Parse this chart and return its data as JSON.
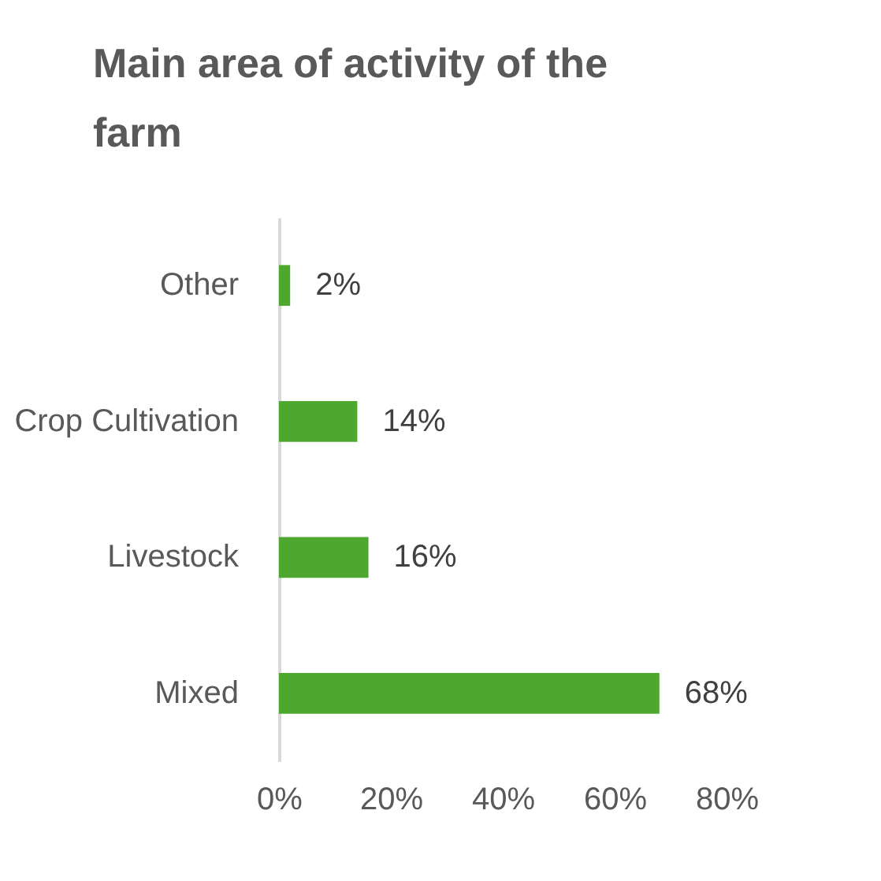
{
  "chart_data": {
    "type": "bar",
    "orientation": "horizontal",
    "title": "Main area of activity of the farm",
    "categories": [
      "Other",
      "Crop Cultivation",
      "Livestock",
      "Mixed"
    ],
    "values": [
      2,
      14,
      16,
      68
    ],
    "color": "#4ea72e",
    "value_labels": [
      "2%",
      "14%",
      "16%",
      "68%"
    ],
    "xlim": [
      0,
      80
    ],
    "xticks": [
      {
        "value": 0,
        "label": "0%"
      },
      {
        "value": 20,
        "label": "20%"
      },
      {
        "value": 40,
        "label": "40%"
      },
      {
        "value": 60,
        "label": "60%"
      },
      {
        "value": 80,
        "label": "80%"
      }
    ],
    "grid": false
  }
}
